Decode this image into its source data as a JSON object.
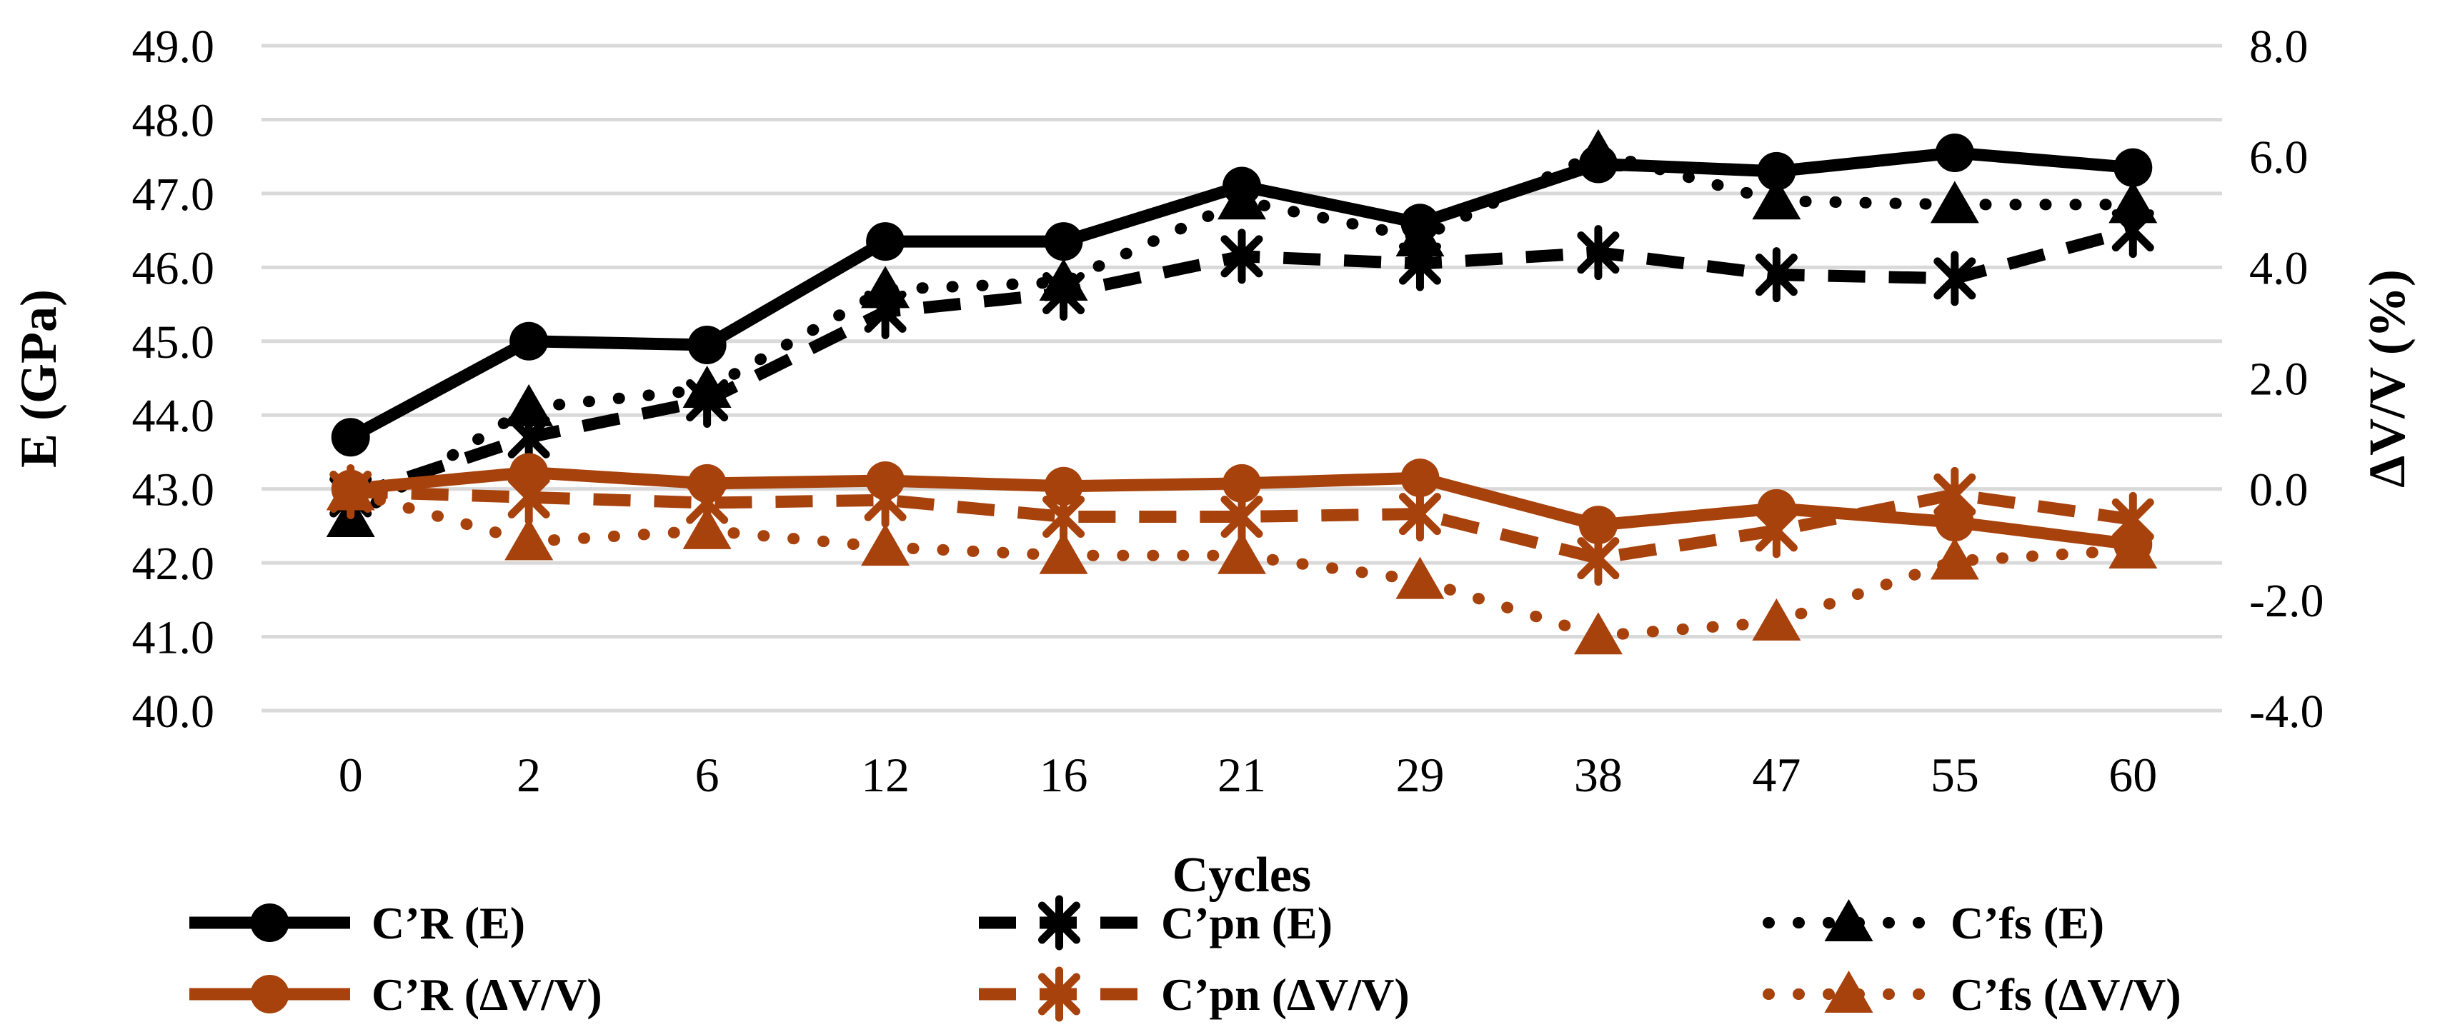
{
  "chart_data": {
    "type": "line",
    "title": "",
    "x_axis": {
      "title": "Cycles",
      "categories": [
        "0",
        "2",
        "6",
        "12",
        "16",
        "21",
        "29",
        "38",
        "47",
        "55",
        "60"
      ]
    },
    "left_axis": {
      "title": "E (GPa)",
      "min": 40.0,
      "max": 49.0,
      "step": 1.0,
      "ticks": [
        "49.0",
        "48.0",
        "47.0",
        "46.0",
        "45.0",
        "44.0",
        "43.0",
        "42.0",
        "41.0",
        "40.0"
      ]
    },
    "right_axis": {
      "title": "ΔV/V (%)",
      "min": -4.0,
      "max": 8.0,
      "step": 2.0,
      "ticks": [
        "8.0",
        "6.0",
        "4.0",
        "2.0",
        "0.0",
        "-2.0",
        "-4.0"
      ]
    },
    "grid": {
      "on": true,
      "color": "#d9d9d9"
    },
    "legend_position": "bottom",
    "colors": {
      "E_series": "#000000",
      "dVV_series": "#a8420d"
    },
    "series": [
      {
        "name": "C’R (E)",
        "axis": "left",
        "color": "#000000",
        "line": "solid",
        "marker": "circle",
        "values": [
          43.7,
          45.0,
          44.95,
          46.35,
          46.35,
          47.1,
          46.6,
          47.4,
          47.3,
          47.55,
          47.35
        ]
      },
      {
        "name": "C’pn (E)",
        "axis": "left",
        "color": "#000000",
        "line": "dashed",
        "marker": "asterisk",
        "values": [
          42.9,
          43.7,
          44.2,
          45.4,
          45.65,
          46.15,
          46.05,
          46.2,
          45.9,
          45.85,
          46.5
        ]
      },
      {
        "name": "C’fs (E)",
        "axis": "left",
        "color": "#000000",
        "line": "dotted",
        "marker": "triangle",
        "values": [
          42.6,
          44.1,
          44.35,
          45.7,
          45.8,
          46.9,
          46.4,
          47.55,
          46.9,
          46.85,
          46.85
        ]
      },
      {
        "name": "C’R (ΔV/V)",
        "axis": "right",
        "color": "#a8420d",
        "line": "solid",
        "marker": "circle",
        "values": [
          0.0,
          0.3,
          0.1,
          0.15,
          0.05,
          0.1,
          0.2,
          -0.65,
          -0.35,
          -0.6,
          -1.0
        ]
      },
      {
        "name": "C’pn (ΔV/V)",
        "axis": "right",
        "color": "#a8420d",
        "line": "dashed",
        "marker": "asterisk",
        "values": [
          -0.05,
          -0.15,
          -0.25,
          -0.2,
          -0.5,
          -0.5,
          -0.45,
          -1.25,
          -0.75,
          -0.1,
          -0.55
        ]
      },
      {
        "name": "C’fs (ΔV/V)",
        "axis": "right",
        "color": "#a8420d",
        "line": "dotted",
        "marker": "triangle",
        "values": [
          -0.05,
          -0.95,
          -0.75,
          -1.05,
          -1.2,
          -1.2,
          -1.65,
          -2.65,
          -2.4,
          -1.3,
          -1.1
        ]
      }
    ],
    "legend": [
      {
        "label": "C’R (E)",
        "row": 0,
        "col": 0
      },
      {
        "label": "C’pn (E)",
        "row": 0,
        "col": 1
      },
      {
        "label": "C’fs (E)",
        "row": 0,
        "col": 2
      },
      {
        "label": "C’R (ΔV/V)",
        "row": 1,
        "col": 0
      },
      {
        "label": "C’pn (ΔV/V)",
        "row": 1,
        "col": 1
      },
      {
        "label": "C’fs (ΔV/V)",
        "row": 1,
        "col": 2
      }
    ]
  }
}
